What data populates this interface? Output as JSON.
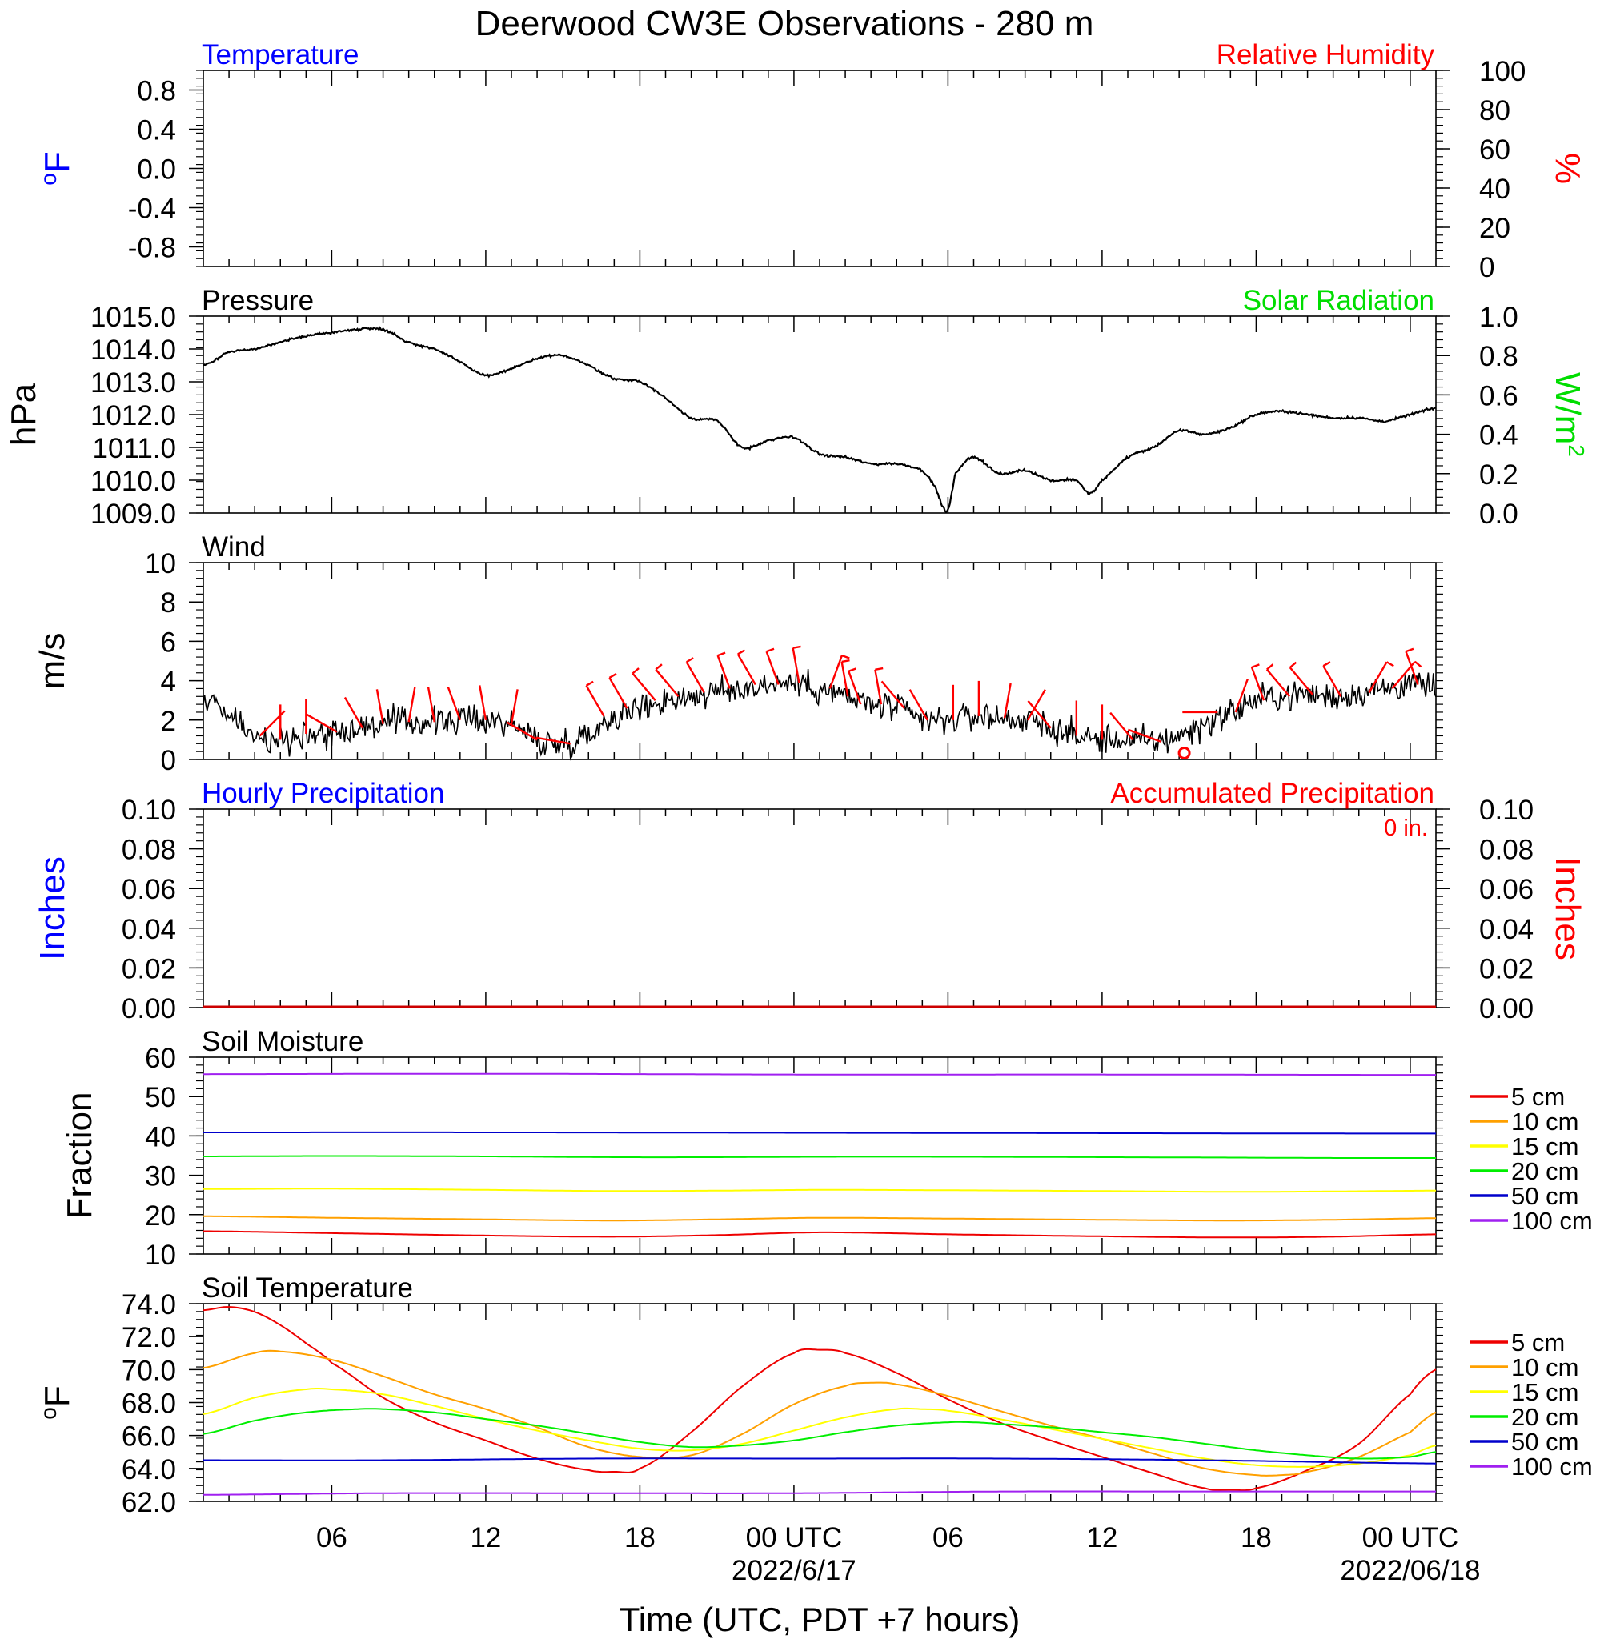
{
  "title": "Deerwood CW3E Observations - 280 m",
  "xlabel": "Time (UTC, PDT +7 hours)",
  "x_ticks": [
    {
      "t": 6,
      "label": "06",
      "date": ""
    },
    {
      "t": 12,
      "label": "12",
      "date": ""
    },
    {
      "t": 18,
      "label": "18",
      "date": ""
    },
    {
      "t": 24,
      "label": "00 UTC",
      "date": "2022/6/17"
    },
    {
      "t": 30,
      "label": "06",
      "date": ""
    },
    {
      "t": 36,
      "label": "12",
      "date": ""
    },
    {
      "t": 42,
      "label": "18",
      "date": ""
    },
    {
      "t": 48,
      "label": "00 UTC",
      "date": "2022/06/18"
    }
  ],
  "colors": {
    "blue": "#0000ff",
    "red": "#ff0000",
    "green": "#00dd00",
    "black": "#000000",
    "soil_5": "#ee0000",
    "soil_10": "#ffa000",
    "soil_15": "#ffff00",
    "soil_20": "#00ee00",
    "soil_50": "#0000cc",
    "soil_100": "#a020f0"
  },
  "chart_data": [
    {
      "id": "temp",
      "type": "line",
      "title_left": "Temperature",
      "title_right": "Relative Humidity",
      "ylabel_left": "°F",
      "ylabel_right": "%",
      "xlim": [
        1,
        49
      ],
      "ylim_left": [
        -1,
        1
      ],
      "ylim_right": [
        0,
        100
      ],
      "yticks_left": [
        "0.8",
        "0.4",
        "0.0",
        "-0.4",
        "-0.8"
      ],
      "yticks_right": [
        "100",
        "80",
        "60",
        "40",
        "20",
        "0"
      ],
      "series": []
    },
    {
      "id": "pressure",
      "type": "line",
      "title_left": "Pressure",
      "title_right": "Solar Radiation",
      "ylabel_left": "hPa",
      "ylabel_right": "W/m2",
      "xlim": [
        1,
        49
      ],
      "ylim_left": [
        1009,
        1015
      ],
      "ylim_right": [
        0,
        1
      ],
      "yticks_left": [
        "1015.0",
        "1014.0",
        "1013.0",
        "1012.0",
        "1011.0",
        "1010.0",
        "1009.0"
      ],
      "yticks_right": [
        "1.0",
        "0.8",
        "0.6",
        "0.4",
        "0.2",
        "0.0"
      ],
      "series": [
        {
          "name": "",
          "x": [
            1,
            2,
            3,
            4,
            5,
            6,
            7,
            8,
            9,
            10,
            11,
            12,
            13,
            14,
            15,
            16,
            17,
            18,
            19,
            20,
            21,
            22,
            23,
            24,
            25,
            26,
            27,
            28,
            29,
            29.5,
            29.8,
            30,
            30.3,
            31,
            32,
            33,
            34,
            35,
            35.5,
            36,
            37,
            38,
            39,
            40,
            41,
            42,
            43,
            44,
            45,
            46,
            47,
            48,
            49
          ],
          "y": [
            1013.5,
            1013.9,
            1014.0,
            1014.2,
            1014.4,
            1014.5,
            1014.6,
            1014.6,
            1014.2,
            1014.0,
            1013.6,
            1013.2,
            1013.4,
            1013.7,
            1013.8,
            1013.5,
            1013.1,
            1013.0,
            1012.5,
            1011.9,
            1011.8,
            1011.0,
            1011.2,
            1011.3,
            1010.8,
            1010.7,
            1010.5,
            1010.5,
            1010.3,
            1009.8,
            1009.2,
            1009.1,
            1010.2,
            1010.7,
            1010.2,
            1010.3,
            1010.0,
            1010.0,
            1009.6,
            1010.0,
            1010.7,
            1011.0,
            1011.5,
            1011.4,
            1011.6,
            1012.0,
            1012.1,
            1012.0,
            1011.9,
            1011.9,
            1011.8,
            1012.0,
            1012.2
          ]
        }
      ]
    },
    {
      "id": "wind",
      "type": "line",
      "title_left": "Wind",
      "ylabel_left": "m/s",
      "xlim": [
        1,
        49
      ],
      "ylim_left": [
        0,
        10
      ],
      "yticks_left": [
        "10",
        "8",
        "6",
        "4",
        "2",
        "0"
      ],
      "series": [
        {
          "name": "",
          "x": [
            1,
            2,
            3,
            4,
            5,
            6,
            7,
            8,
            9,
            10,
            11,
            12,
            13,
            14,
            15,
            16,
            17,
            18,
            19,
            20,
            21,
            22,
            23,
            24,
            25,
            26,
            27,
            28,
            29,
            30,
            31,
            32,
            33,
            34,
            35,
            36,
            37,
            38,
            39,
            40,
            41,
            42,
            43,
            44,
            45,
            46,
            47,
            48,
            49
          ],
          "y": [
            3.0,
            2.2,
            1.2,
            1.0,
            1.3,
            1.4,
            1.6,
            1.8,
            1.9,
            1.9,
            2.0,
            2.0,
            1.8,
            1.0,
            0.8,
            1.3,
            2.2,
            2.6,
            3.0,
            3.2,
            3.4,
            3.6,
            3.8,
            3.9,
            3.6,
            3.2,
            2.8,
            2.6,
            2.0,
            2.0,
            2.2,
            2.1,
            2.0,
            1.6,
            1.2,
            1.0,
            1.0,
            0.9,
            1.2,
            1.8,
            2.4,
            3.0,
            3.2,
            3.3,
            3.2,
            3.4,
            3.6,
            3.8,
            3.6
          ]
        }
      ],
      "barbs": [
        {
          "t": 3.2,
          "dir": 45,
          "flags": 0
        },
        {
          "t": 4.0,
          "dir": 0,
          "flags": 0
        },
        {
          "t": 5.0,
          "dir": 0,
          "flags": 0
        },
        {
          "t": 6.2,
          "dir": 300,
          "flags": 0
        },
        {
          "t": 7.2,
          "dir": 330,
          "flags": 0
        },
        {
          "t": 8.0,
          "dir": 350,
          "flags": 0
        },
        {
          "t": 9.0,
          "dir": 10,
          "flags": 0
        },
        {
          "t": 10.0,
          "dir": 350,
          "flags": 0
        },
        {
          "t": 11.0,
          "dir": 340,
          "flags": 0
        },
        {
          "t": 12.0,
          "dir": 350,
          "flags": 0
        },
        {
          "t": 13.0,
          "dir": 10,
          "flags": 0
        },
        {
          "t": 14.0,
          "dir": 300,
          "flags": 0
        },
        {
          "t": 15.3,
          "dir": 280,
          "flags": 0
        },
        {
          "t": 16.6,
          "dir": 330,
          "flags": 1
        },
        {
          "t": 17.5,
          "dir": 330,
          "flags": 1
        },
        {
          "t": 18.6,
          "dir": 320,
          "flags": 1
        },
        {
          "t": 19.5,
          "dir": 320,
          "flags": 1
        },
        {
          "t": 20.5,
          "dir": 330,
          "flags": 1
        },
        {
          "t": 21.5,
          "dir": 340,
          "flags": 1
        },
        {
          "t": 22.5,
          "dir": 330,
          "flags": 1
        },
        {
          "t": 23.4,
          "dir": 340,
          "flags": 1
        },
        {
          "t": 24.2,
          "dir": 350,
          "flags": 1
        },
        {
          "t": 25.4,
          "dir": 20,
          "flags": 1
        },
        {
          "t": 26.1,
          "dir": 350,
          "flags": 1
        },
        {
          "t": 26.6,
          "dir": 340,
          "flags": 1
        },
        {
          "t": 27.4,
          "dir": 350,
          "flags": 1
        },
        {
          "t": 28.3,
          "dir": 320,
          "flags": 0
        },
        {
          "t": 29.2,
          "dir": 330,
          "flags": 0
        },
        {
          "t": 30.2,
          "dir": 0,
          "flags": 0
        },
        {
          "t": 31.2,
          "dir": 0,
          "flags": 0
        },
        {
          "t": 32.2,
          "dir": 10,
          "flags": 0
        },
        {
          "t": 33.1,
          "dir": 30,
          "flags": 0
        },
        {
          "t": 34.0,
          "dir": 320,
          "flags": 0
        },
        {
          "t": 35.0,
          "dir": 0,
          "flags": 0
        },
        {
          "t": 36.0,
          "dir": 0,
          "flags": 0
        },
        {
          "t": 37.2,
          "dir": 320,
          "flags": 0
        },
        {
          "t": 38.3,
          "dir": 290,
          "flags": 0
        },
        {
          "t": 39.2,
          "dir": "calm",
          "flags": 0
        },
        {
          "t": 40.5,
          "dir": 270,
          "flags": 0
        },
        {
          "t": 41.2,
          "dir": 20,
          "flags": 0
        },
        {
          "t": 42.3,
          "dir": 340,
          "flags": 1
        },
        {
          "t": 43.3,
          "dir": 320,
          "flags": 1
        },
        {
          "t": 44.2,
          "dir": 320,
          "flags": 1
        },
        {
          "t": 45.3,
          "dir": 330,
          "flags": 1
        },
        {
          "t": 46.4,
          "dir": 30,
          "flags": 1
        },
        {
          "t": 47.3,
          "dir": 40,
          "flags": 1
        },
        {
          "t": 48.3,
          "dir": 340,
          "flags": 1
        }
      ]
    },
    {
      "id": "precip",
      "type": "line",
      "title_left": "Hourly Precipitation",
      "title_right": "Accumulated Precipitation",
      "annotation": "0 in.",
      "ylabel_left": "Inches",
      "ylabel_right": "Inches",
      "xlim": [
        1,
        49
      ],
      "ylim_left": [
        0,
        0.1
      ],
      "ylim_right": [
        0,
        0.1
      ],
      "yticks_left": [
        "0.10",
        "0.08",
        "0.06",
        "0.04",
        "0.02",
        "0.00"
      ],
      "yticks_right": [
        "0.10",
        "0.08",
        "0.06",
        "0.04",
        "0.02",
        "0.00"
      ],
      "series": [
        {
          "name": "",
          "x": [
            1,
            49
          ],
          "y": [
            0,
            0
          ]
        }
      ]
    },
    {
      "id": "soilm",
      "type": "line",
      "title_left": "Soil Moisture",
      "ylabel_left": "Fraction",
      "xlim": [
        1,
        49
      ],
      "ylim_left": [
        10,
        60
      ],
      "yticks_left": [
        "60",
        "50",
        "40",
        "30",
        "20",
        "10"
      ],
      "series": [
        {
          "name": "5 cm",
          "x": [
            1,
            6,
            12,
            17,
            21,
            25,
            30,
            36,
            41,
            45,
            49
          ],
          "y": [
            15.8,
            15.3,
            14.7,
            14.4,
            14.8,
            15.5,
            15.0,
            14.5,
            14.2,
            14.4,
            15.0
          ]
        },
        {
          "name": "10 cm",
          "x": [
            1,
            6,
            12,
            17,
            21,
            25,
            30,
            36,
            41,
            45,
            49
          ],
          "y": [
            19.6,
            19.2,
            18.8,
            18.5,
            18.8,
            19.2,
            19.0,
            18.7,
            18.5,
            18.7,
            19.1
          ]
        },
        {
          "name": "15 cm",
          "x": [
            1,
            6,
            12,
            17,
            21,
            25,
            30,
            36,
            41,
            45,
            49
          ],
          "y": [
            26.5,
            26.6,
            26.3,
            26.0,
            26.1,
            26.3,
            26.2,
            26.0,
            25.8,
            25.9,
            26.1
          ]
        },
        {
          "name": "20 cm",
          "x": [
            1,
            6,
            12,
            17,
            21,
            25,
            30,
            36,
            41,
            45,
            49
          ],
          "y": [
            34.8,
            34.9,
            34.8,
            34.6,
            34.6,
            34.7,
            34.7,
            34.6,
            34.5,
            34.4,
            34.4
          ]
        },
        {
          "name": "50 cm",
          "x": [
            1,
            12,
            24,
            36,
            49
          ],
          "y": [
            40.9,
            40.9,
            40.8,
            40.7,
            40.6
          ]
        },
        {
          "name": "100 cm",
          "x": [
            1,
            12,
            24,
            36,
            49
          ],
          "y": [
            55.7,
            55.8,
            55.6,
            55.6,
            55.5
          ]
        }
      ]
    },
    {
      "id": "soilt",
      "type": "line",
      "title_left": "Soil Temperature",
      "ylabel_left": "°F",
      "xlim": [
        1,
        49
      ],
      "ylim_left": [
        62,
        74
      ],
      "yticks_left": [
        "74.0",
        "72.0",
        "70.0",
        "68.0",
        "66.0",
        "64.0",
        "62.0"
      ],
      "series": [
        {
          "name": "5 cm",
          "x": [
            1,
            2,
            3,
            4,
            5,
            6,
            8,
            10,
            12,
            14,
            16,
            17,
            18,
            20,
            22,
            24,
            25,
            26,
            28,
            30,
            32,
            34,
            36,
            38,
            40,
            41,
            42,
            44,
            46,
            48,
            49
          ],
          "y": [
            73.6,
            73.8,
            73.5,
            72.7,
            71.6,
            70.4,
            68.3,
            66.8,
            65.7,
            64.6,
            63.9,
            63.8,
            64.0,
            66.2,
            69.0,
            71.0,
            71.2,
            71.0,
            69.8,
            68.2,
            66.8,
            65.7,
            64.7,
            63.7,
            62.8,
            62.7,
            62.8,
            63.9,
            65.5,
            68.5,
            70.0
          ]
        },
        {
          "name": "10 cm",
          "x": [
            1,
            3,
            4,
            6,
            8,
            10,
            12,
            14,
            16,
            18,
            20,
            22,
            24,
            26,
            27,
            28,
            30,
            32,
            34,
            36,
            38,
            40,
            42,
            43,
            44,
            46,
            48,
            49
          ],
          "y": [
            70.1,
            71.0,
            71.1,
            70.6,
            69.6,
            68.5,
            67.6,
            66.5,
            65.3,
            64.7,
            64.8,
            66.1,
            67.9,
            69.0,
            69.2,
            69.1,
            68.4,
            67.5,
            66.6,
            65.8,
            64.9,
            64.0,
            63.6,
            63.6,
            63.8,
            64.7,
            66.2,
            67.4
          ]
        },
        {
          "name": "15 cm",
          "x": [
            1,
            3,
            5,
            6,
            8,
            10,
            12,
            14,
            16,
            18,
            20,
            22,
            24,
            26,
            28,
            29,
            30,
            32,
            34,
            36,
            38,
            40,
            42,
            44,
            46,
            48,
            49
          ],
          "y": [
            67.3,
            68.3,
            68.8,
            68.8,
            68.5,
            67.8,
            67.0,
            66.3,
            65.7,
            65.2,
            65.1,
            65.5,
            66.3,
            67.1,
            67.6,
            67.6,
            67.5,
            67.0,
            66.4,
            65.8,
            65.2,
            64.6,
            64.2,
            64.1,
            64.3,
            64.8,
            65.4
          ]
        },
        {
          "name": "20 cm",
          "x": [
            1,
            3,
            5,
            7,
            8,
            10,
            12,
            14,
            16,
            18,
            20,
            22,
            24,
            26,
            28,
            30,
            31,
            32,
            34,
            36,
            38,
            40,
            42,
            44,
            46,
            48,
            49
          ],
          "y": [
            66.1,
            66.9,
            67.4,
            67.6,
            67.6,
            67.4,
            67.0,
            66.6,
            66.1,
            65.6,
            65.3,
            65.4,
            65.7,
            66.2,
            66.6,
            66.8,
            66.8,
            66.7,
            66.5,
            66.2,
            65.9,
            65.5,
            65.1,
            64.8,
            64.6,
            64.7,
            65.0
          ]
        },
        {
          "name": "50 cm",
          "x": [
            1,
            8,
            16,
            24,
            32,
            40,
            49
          ],
          "y": [
            64.5,
            64.5,
            64.6,
            64.6,
            64.6,
            64.5,
            64.3
          ]
        },
        {
          "name": "100 cm",
          "x": [
            1,
            8,
            16,
            24,
            32,
            40,
            49
          ],
          "y": [
            62.4,
            62.5,
            62.5,
            62.5,
            62.6,
            62.6,
            62.6
          ]
        }
      ]
    }
  ]
}
